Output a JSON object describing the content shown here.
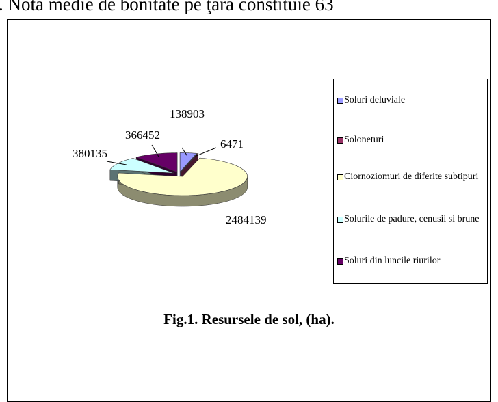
{
  "header_text": ". Nota medie de bonitate pe ţara constituie 63",
  "chart_data": {
    "type": "pie",
    "caption": "Fig.1. Resursele de sol, (ha).",
    "categories": [
      "Soluri deluviale",
      "Soloneturi",
      "Ciornoziomuri de diferite subtipuri",
      "Solurile de padure, cenusii si brune",
      "Soluri din luncile riurilor"
    ],
    "values": [
      138903,
      6471,
      2484139,
      380135,
      366452
    ],
    "colors": [
      "#9999ff",
      "#993366",
      "#ffffcc",
      "#ccffff",
      "#660066"
    ],
    "legend": "right"
  }
}
